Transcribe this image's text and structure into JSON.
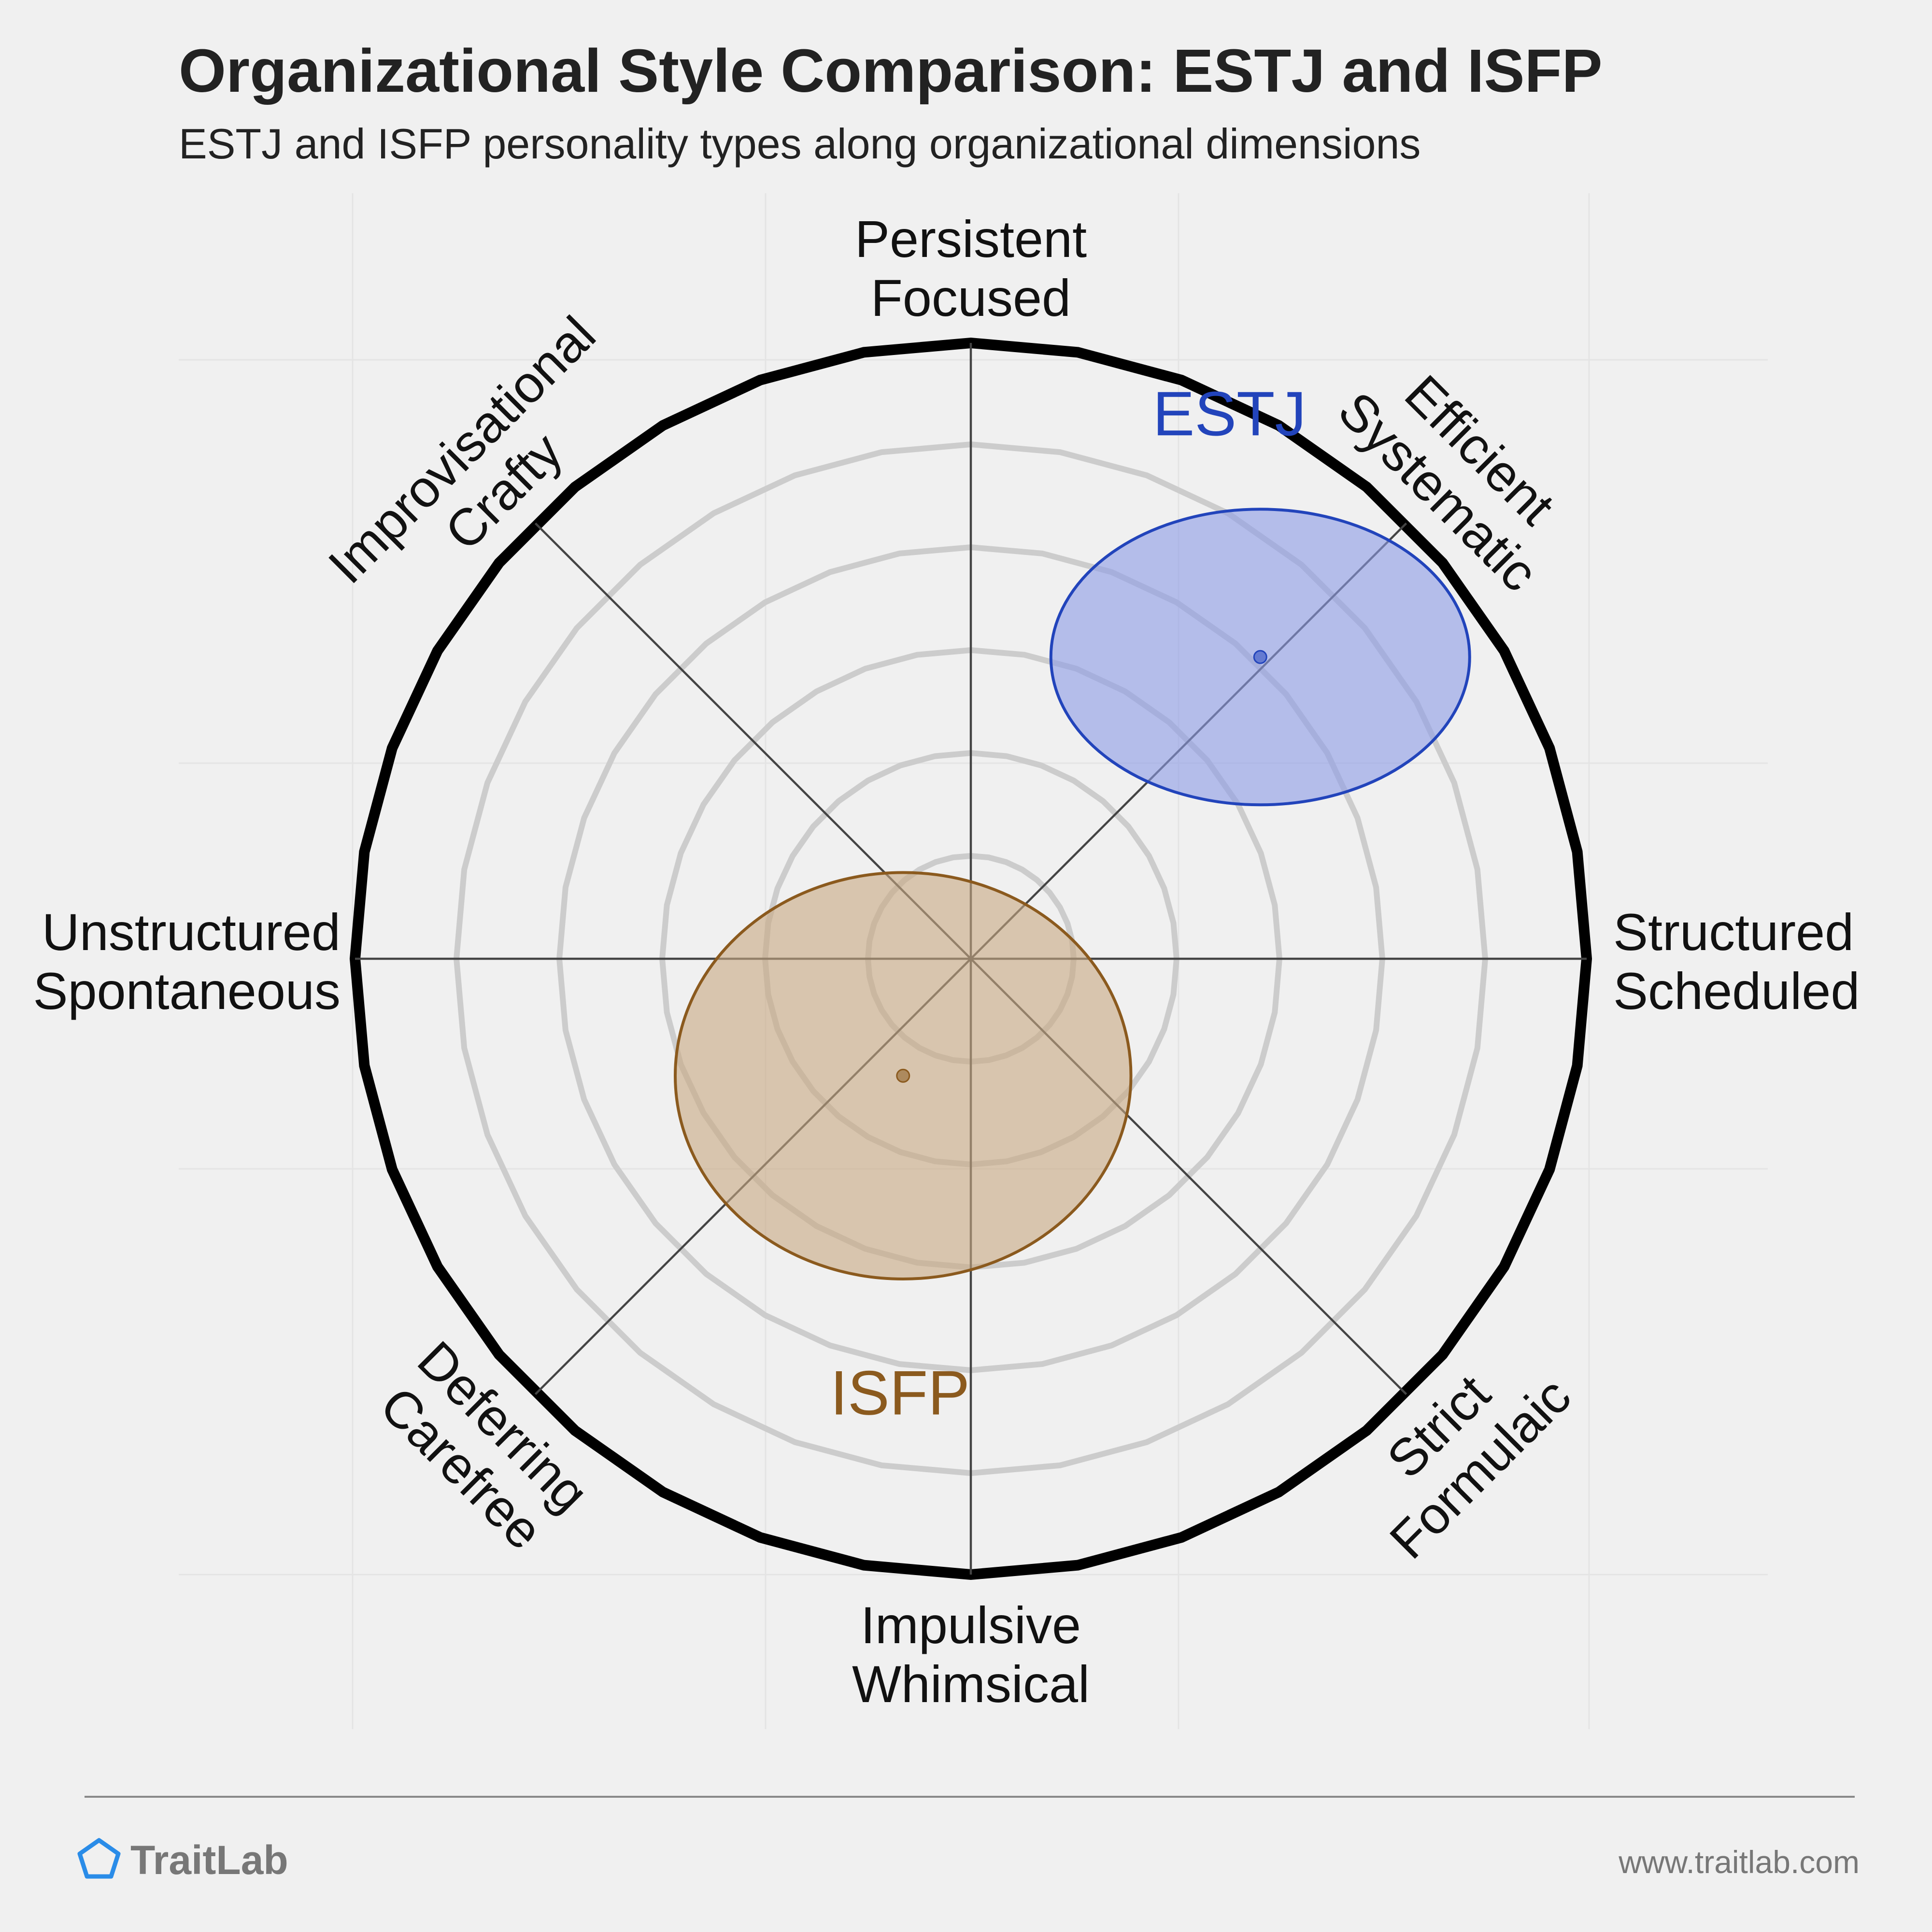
{
  "title": "Organizational Style Comparison: ESTJ and ISFP",
  "subtitle": "ESTJ and ISFP personality types along organizational dimensions",
  "colors": {
    "background": "#f0f0f0",
    "estj": "#2244bb",
    "estj_fill": "#8c9be6",
    "isfp": "#8b5a1e",
    "isfp_fill": "#c8a882",
    "ring": "#cccccc",
    "outer_ring": "#000000",
    "spoke": "#444444"
  },
  "chart_data": {
    "type": "scatter",
    "description_axes": [
      {
        "direction": "up",
        "lines": [
          "Persistent",
          "Focused"
        ]
      },
      {
        "direction": "up-right",
        "lines": [
          "Efficient",
          "Systematic"
        ]
      },
      {
        "direction": "right",
        "lines": [
          "Structured",
          "Scheduled"
        ]
      },
      {
        "direction": "down-right",
        "lines": [
          "Strict",
          "Formulaic"
        ]
      },
      {
        "direction": "down",
        "lines": [
          "Impulsive",
          "Whimsical"
        ]
      },
      {
        "direction": "down-left",
        "lines": [
          "Deferring",
          "Carefree"
        ]
      },
      {
        "direction": "left",
        "lines": [
          "Unstructured",
          "Spontaneous"
        ]
      },
      {
        "direction": "up-left",
        "lines": [
          "Improvisational",
          "Crafty"
        ]
      }
    ],
    "xlim": [
      -1,
      1
    ],
    "ylim": [
      -1,
      1
    ],
    "rings": 6,
    "series": [
      {
        "name": "ESTJ",
        "x": 0.47,
        "y": 0.49,
        "spread_x": 0.34,
        "spread_y": 0.24
      },
      {
        "name": "ISFP",
        "x": -0.11,
        "y": -0.19,
        "spread_x": 0.37,
        "spread_y": 0.33
      }
    ]
  },
  "footer": {
    "brand": "TraitLab",
    "url": "www.traitlab.com"
  }
}
